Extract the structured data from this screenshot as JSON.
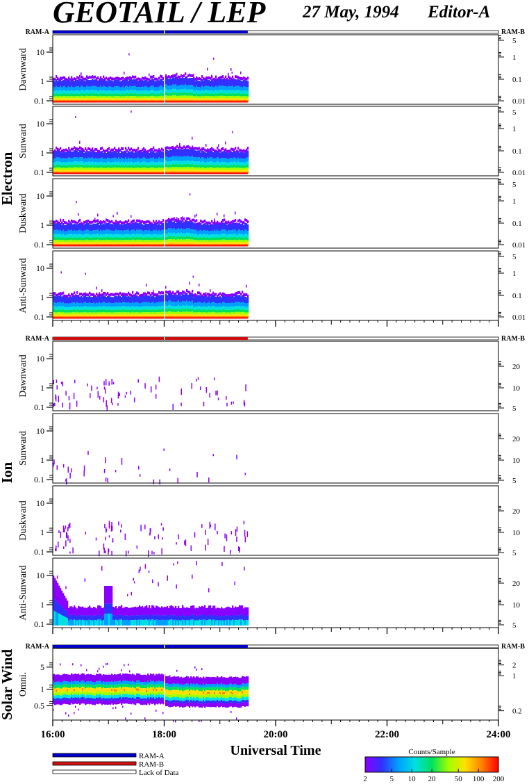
{
  "header": {
    "title": "GEOTAIL / LEP",
    "date": "27 May, 1994",
    "editor": "Editor-A"
  },
  "chart_data": {
    "type": "heatmap",
    "time_axis": {
      "label": "Universal Time",
      "range_hours": [
        16,
        24
      ],
      "major_ticks": [
        16,
        18,
        20,
        22,
        24
      ],
      "tick_labels": [
        "16:00",
        "18:00",
        "20:00",
        "22:00",
        "24:00"
      ],
      "data_end_hour": 19.5
    },
    "ram_label_left": "RAM-A",
    "ram_label_right": "RAM-B",
    "ram_colors": {
      "ram_a": "#0000c8",
      "ram_b": "#d01010"
    },
    "groups": [
      {
        "name": "Electron",
        "ram_mode": "RAM-A",
        "panels": [
          {
            "label": "Dawnward",
            "left_ticks": [
              "10",
              "1",
              "0.1"
            ],
            "right_ticks": [
              "5",
              "1",
              "0.1",
              "0.01"
            ]
          },
          {
            "label": "Sunward",
            "left_ticks": [
              "10",
              "1",
              "0.1"
            ],
            "right_ticks": [
              "5",
              "1",
              "0.1",
              "0.01"
            ]
          },
          {
            "label": "Duskward",
            "left_ticks": [
              "10",
              "1",
              "0.1"
            ],
            "right_ticks": [
              "5",
              "1",
              "0.1",
              "0.01"
            ]
          },
          {
            "label": "Anti-Sunward",
            "left_ticks": [
              "10",
              "1",
              "0.1"
            ],
            "right_ticks": [
              "5",
              "1",
              "0.1",
              "0.01"
            ]
          }
        ]
      },
      {
        "name": "Ion",
        "ram_mode": "RAM-B",
        "panels": [
          {
            "label": "Dawnward",
            "left_ticks": [
              "10",
              "1",
              "0.1"
            ],
            "right_ticks": [
              "20",
              "10",
              "5"
            ]
          },
          {
            "label": "Sunward",
            "left_ticks": [
              "10",
              "1",
              "0.1"
            ],
            "right_ticks": [
              "20",
              "10",
              "5"
            ]
          },
          {
            "label": "Duskward",
            "left_ticks": [
              "10",
              "1",
              "0.1"
            ],
            "right_ticks": [
              "20",
              "10",
              "5"
            ]
          },
          {
            "label": "Anti-Sunward",
            "left_ticks": [
              "10",
              "1",
              "0.1"
            ],
            "right_ticks": [
              "20",
              "10",
              "5"
            ]
          }
        ]
      },
      {
        "name": "Solar Wind",
        "ram_mode": "RAM-A",
        "panels": [
          {
            "label": "Omni.",
            "left_ticks": [
              "5",
              "1",
              "0.5"
            ],
            "right_ticks": [
              "2",
              "1",
              "0.2"
            ]
          }
        ]
      }
    ],
    "legend": {
      "entries": [
        "RAM-A",
        "RAM-B",
        "Lack of Data"
      ],
      "colorbar_title": "Counts/Sample",
      "colorbar_ticks": [
        "2",
        "5",
        "10",
        "20",
        "50",
        "100",
        "200"
      ],
      "colorbar_values": [
        2,
        5,
        10,
        20,
        50,
        100,
        200
      ],
      "colorbar_range": [
        2,
        200
      ],
      "colorbar_scale": "log"
    },
    "colormap": [
      "#8a00ff",
      "#3030ff",
      "#00a0ff",
      "#00e0e0",
      "#00e060",
      "#a0ff00",
      "#ffe000",
      "#ff8000",
      "#ff0000"
    ]
  }
}
